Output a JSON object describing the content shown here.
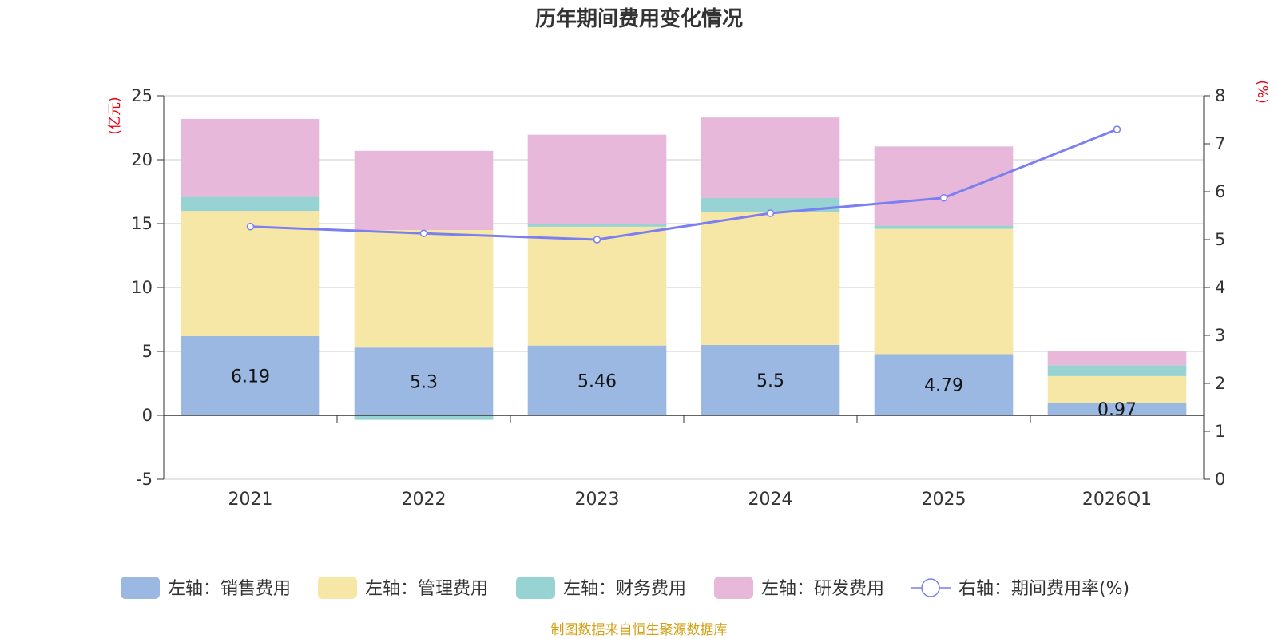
{
  "chart_data": {
    "type": "bar",
    "title": "历年期间费用变化情况",
    "categories": [
      "2021",
      "2022",
      "2023",
      "2024",
      "2025",
      "2026Q1"
    ],
    "left_axis": {
      "unit": "(亿元)",
      "ylim": [
        -5,
        25
      ],
      "ticks": [
        -5,
        0,
        5,
        10,
        15,
        20,
        25
      ]
    },
    "right_axis": {
      "unit": "(%)",
      "ylim": [
        0,
        8
      ],
      "ticks": [
        0,
        1,
        2,
        3,
        4,
        5,
        6,
        7,
        8
      ]
    },
    "series": [
      {
        "name": "左轴：销售费用",
        "axis": "left",
        "type": "bar",
        "color": "#9bb8e2",
        "values": [
          6.19,
          5.3,
          5.46,
          5.5,
          4.79,
          0.97
        ],
        "labels": [
          "6.19",
          "5.3",
          "5.46",
          "5.5",
          "4.79",
          "0.97"
        ]
      },
      {
        "name": "左轴：管理费用",
        "axis": "left",
        "type": "bar",
        "color": "#f7e7a6",
        "values": [
          9.8,
          9.2,
          9.3,
          10.4,
          9.8,
          2.1
        ]
      },
      {
        "name": "左轴：财务费用",
        "axis": "left",
        "type": "bar",
        "color": "#96d3d2",
        "values": [
          1.1,
          -0.35,
          0.2,
          1.1,
          0.25,
          0.85
        ]
      },
      {
        "name": "左轴：研发费用",
        "axis": "left",
        "type": "bar",
        "color": "#e8b8da",
        "values": [
          6.1,
          6.2,
          7.0,
          6.3,
          6.2,
          1.1
        ]
      },
      {
        "name": "右轴：期间费用率(%)",
        "axis": "right",
        "type": "line",
        "color": "#7b7ff0",
        "values": [
          5.27,
          5.13,
          5.0,
          5.55,
          5.87,
          7.3
        ]
      }
    ],
    "legend_position": "bottom",
    "grid": true
  },
  "footer": {
    "source": "制图数据来自恒生聚源数据库"
  }
}
